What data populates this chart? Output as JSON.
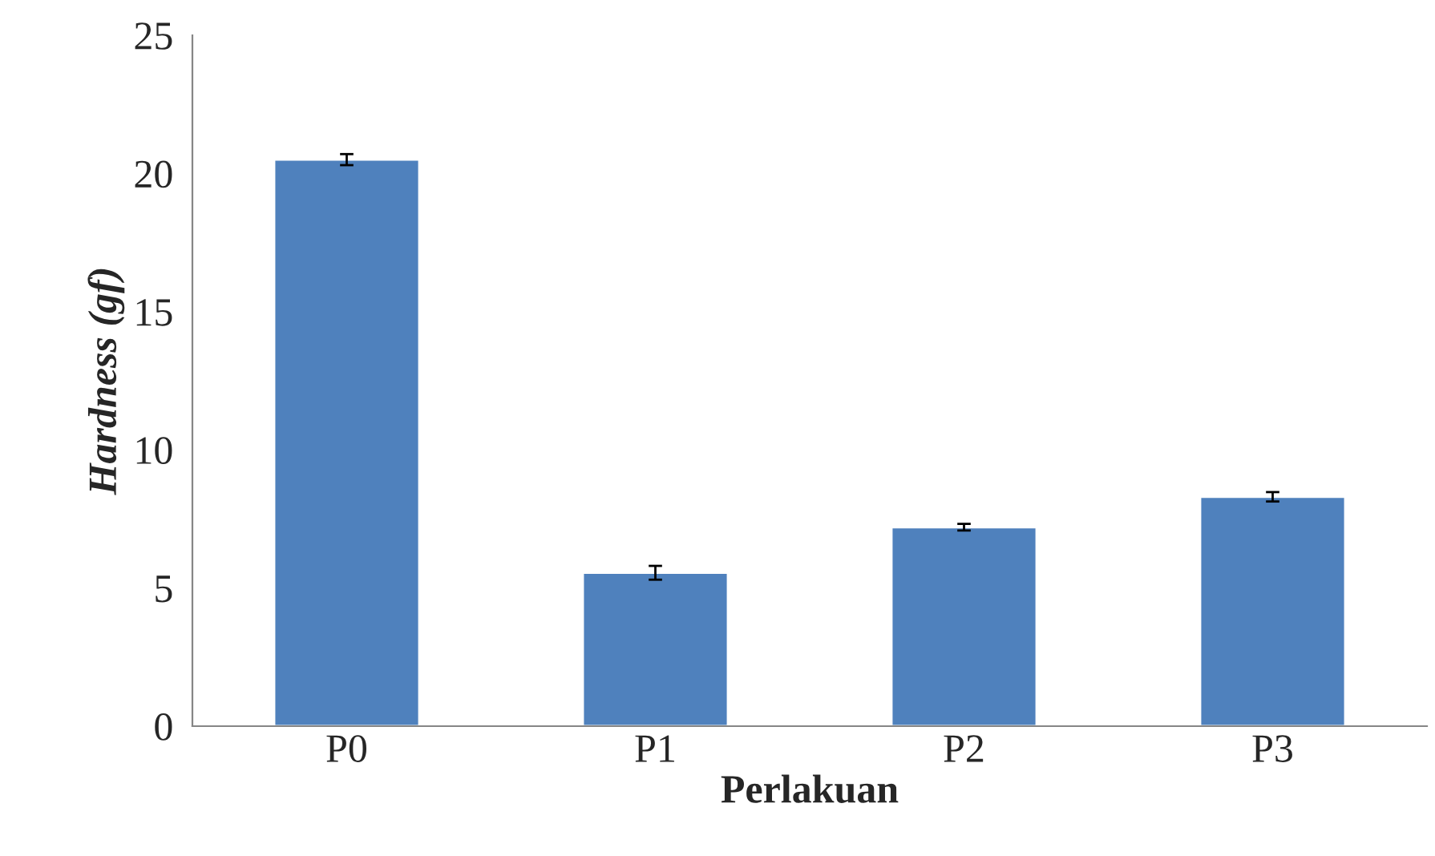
{
  "chart_data": {
    "type": "bar",
    "xlabel": "Perlakuan",
    "ylabel": "Hardness (gf)",
    "categories": [
      "P0",
      "P1",
      "P2",
      "P3"
    ],
    "values": [
      20.5,
      5.55,
      7.2,
      8.3
    ],
    "errors": [
      0.2,
      0.25,
      0.12,
      0.17
    ],
    "color": "#4f81bd",
    "ylim": [
      0,
      25
    ],
    "yticks": [
      0,
      5,
      10,
      15,
      20,
      25
    ],
    "grid": false
  }
}
